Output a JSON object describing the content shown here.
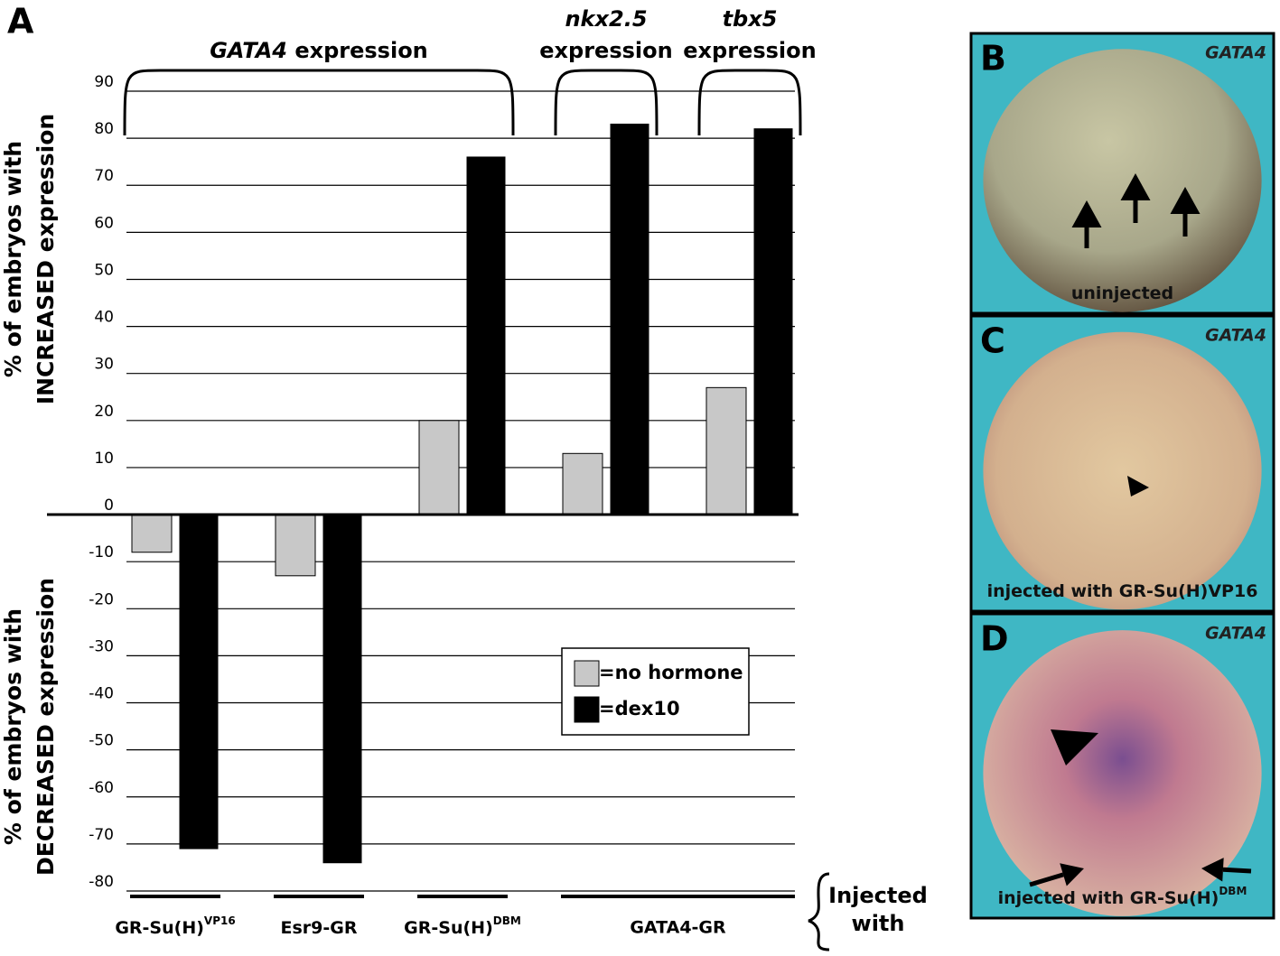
{
  "panel_letter": "A",
  "chart_data": {
    "type": "bar",
    "categories": [
      "GR-Su(H)",
      "Esr9-GR",
      "GR-Su(H)",
      null,
      null
    ],
    "category_superscripts": [
      "VP16",
      null,
      "DBM",
      null,
      null
    ],
    "category_groups": [
      {
        "label": "GATA4-GR",
        "categories": [
          3,
          4
        ]
      }
    ],
    "series": [
      {
        "name": "=no hormone",
        "color": "#c8c8c8",
        "values": [
          -8,
          -13,
          20,
          13,
          27
        ]
      },
      {
        "name": "=dex10",
        "color": "#000000",
        "values": [
          -71,
          -74,
          76,
          83,
          82
        ]
      }
    ],
    "ylim": [
      -80,
      90
    ],
    "yticks": [
      -80,
      -70,
      -60,
      -50,
      -40,
      -30,
      -20,
      -10,
      0,
      10,
      20,
      30,
      40,
      50,
      60,
      70,
      80,
      90
    ],
    "grid": true,
    "y_label_upper": [
      "% of embryos with",
      "INCREASED expression"
    ],
    "y_label_lower": [
      "% of embryos with",
      "DECREASED expression"
    ],
    "brackets": [
      {
        "gene": "GATA4",
        "text": "expression",
        "categories": [
          0,
          1,
          2
        ]
      },
      {
        "gene": "nkx2.5",
        "text": "expression",
        "categories": [
          3
        ]
      },
      {
        "gene": "tbx5",
        "text": "expression",
        "categories": [
          4
        ]
      }
    ],
    "x_axis_note": [
      "Injected",
      "with"
    ]
  },
  "panels": [
    {
      "letter": "B",
      "gene": "GATA4",
      "caption": "uninjected",
      "caption_sup": null
    },
    {
      "letter": "C",
      "gene": "GATA4",
      "caption": "injected with GR-Su(H)VP16",
      "caption_sup": null
    },
    {
      "letter": "D",
      "gene": "GATA4",
      "caption": "injected with GR-Su(H)",
      "caption_sup": "DBM"
    }
  ]
}
